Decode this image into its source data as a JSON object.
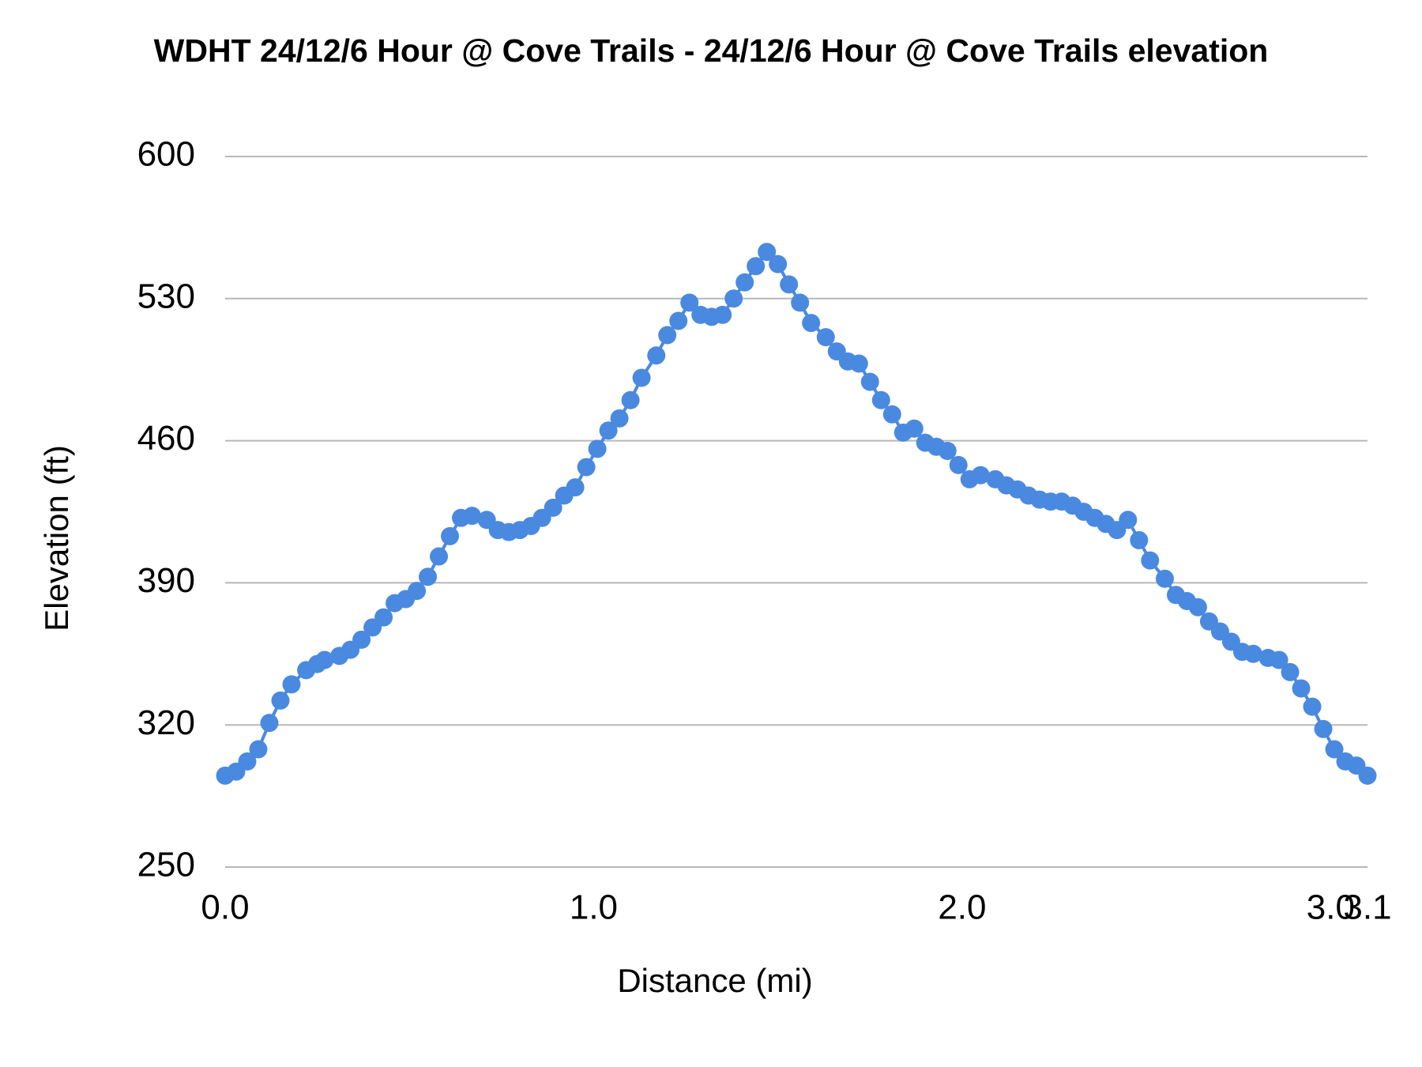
{
  "chart_data": {
    "type": "line",
    "title": "WDHT 24/12/6 Hour @ Cove Trails - 24/12/6 Hour @ Cove Trails elevation",
    "x_label": "Distance (mi)",
    "y_label": "Elevation (ft)",
    "xlim": [
      0,
      3.1
    ],
    "xticks": [
      {
        "value": 0,
        "label": "0.0"
      },
      {
        "value": 1,
        "label": "1.0"
      },
      {
        "value": 2,
        "label": "2.0"
      },
      {
        "value": 3,
        "label": "3.0"
      },
      3.1
    ],
    "ylim": [
      250,
      600
    ],
    "yticks": [
      250,
      320,
      390,
      460,
      530,
      600
    ],
    "grid": true,
    "x": [
      0.0,
      0.03,
      0.06,
      0.09,
      0.12,
      0.15,
      0.18,
      0.22,
      0.25,
      0.27,
      0.31,
      0.34,
      0.37,
      0.4,
      0.43,
      0.46,
      0.49,
      0.52,
      0.55,
      0.58,
      0.61,
      0.64,
      0.67,
      0.71,
      0.74,
      0.77,
      0.8,
      0.83,
      0.86,
      0.89,
      0.92,
      0.95,
      0.98,
      1.01,
      1.04,
      1.07,
      1.1,
      1.13,
      1.17,
      1.2,
      1.23,
      1.26,
      1.29,
      1.32,
      1.35,
      1.38,
      1.41,
      1.44,
      1.47,
      1.5,
      1.53,
      1.56,
      1.59,
      1.63,
      1.66,
      1.69,
      1.72,
      1.75,
      1.78,
      1.81,
      1.84,
      1.87,
      1.9,
      1.93,
      1.96,
      1.99,
      2.02,
      2.05,
      2.09,
      2.12,
      2.15,
      2.18,
      2.21,
      2.24,
      2.27,
      2.3,
      2.33,
      2.36,
      2.39,
      2.42,
      2.45,
      2.48,
      2.51,
      2.55,
      2.58,
      2.61,
      2.64,
      2.67,
      2.7,
      2.73,
      2.76,
      2.79,
      2.83,
      2.86,
      2.89,
      2.92,
      2.95,
      2.98,
      3.01,
      3.04,
      3.07,
      3.1
    ],
    "series": [
      {
        "name": "Elevation",
        "color": "#4a89e0",
        "values": [
          295,
          297,
          302,
          308,
          321,
          332,
          340,
          347,
          350,
          352,
          354,
          357,
          362,
          368,
          373,
          380,
          382,
          386,
          393,
          403,
          413,
          422,
          423,
          421,
          416,
          415,
          416,
          418,
          422,
          427,
          433,
          437,
          447,
          456,
          465,
          471,
          480,
          491,
          502,
          512,
          519,
          528,
          522,
          521,
          522,
          530,
          538,
          546,
          553,
          547,
          537,
          528,
          518,
          511,
          504,
          499,
          498,
          489,
          480,
          473,
          464,
          466,
          459,
          457,
          455,
          448,
          441,
          443,
          441,
          438,
          436,
          433,
          431,
          430,
          430,
          428,
          425,
          422,
          419,
          416,
          421,
          411,
          401,
          392,
          384,
          381,
          378,
          371,
          366,
          361,
          356,
          355,
          353,
          352,
          346,
          338,
          329,
          318,
          308,
          302,
          300,
          295
        ]
      }
    ]
  }
}
